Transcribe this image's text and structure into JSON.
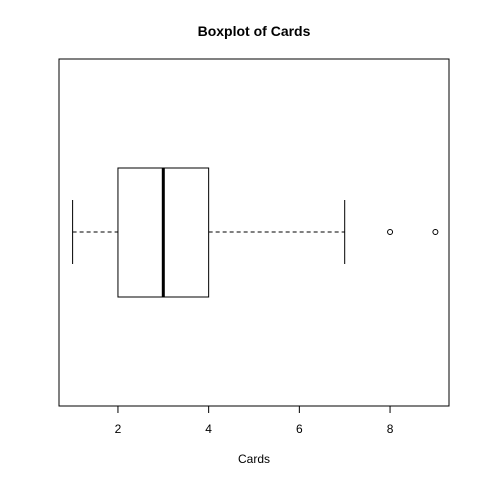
{
  "chart_data": {
    "type": "boxplot",
    "title": "Boxplot of Cards",
    "xlabel": "Cards",
    "ylabel": "",
    "orientation": "horizontal",
    "xlim": [
      0.7,
      9.3
    ],
    "x_ticks": [
      2,
      4,
      6,
      8
    ],
    "x_tick_labels": [
      "2",
      "4",
      "6",
      "8"
    ],
    "box": {
      "whisker_low": 1,
      "q1": 2,
      "median": 3,
      "q3": 4,
      "whisker_high": 7,
      "outliers": [
        8,
        9
      ]
    },
    "grid": false,
    "colors": {
      "line": "#000000",
      "background": "#ffffff"
    }
  }
}
